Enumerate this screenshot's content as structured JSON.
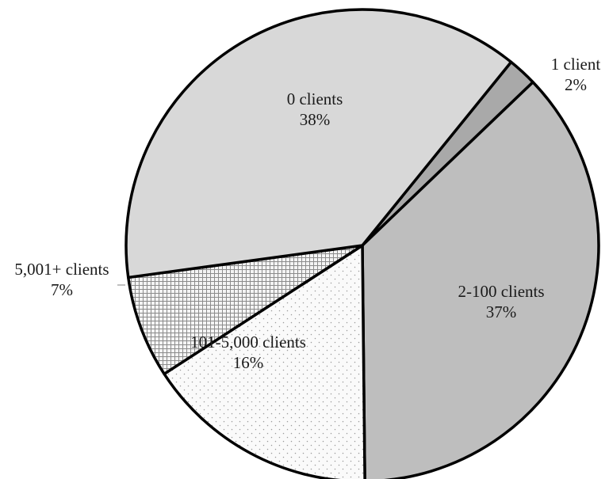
{
  "chart_data": {
    "type": "pie",
    "title": "",
    "start_angle_deg": 39,
    "direction": "clockwise",
    "slices": [
      {
        "name": "1 client",
        "label_line1": "1 client",
        "label_line2": "2%",
        "value": 2,
        "fill": "#a9a9a9",
        "pattern": "solid"
      },
      {
        "name": "2-100 clients",
        "label_line1": "2-100 clients",
        "label_line2": "37%",
        "value": 37,
        "fill": "#bebebe",
        "pattern": "solid"
      },
      {
        "name": "101-5,000 clients",
        "label_line1": "101-5,000 clients",
        "label_line2": "16%",
        "value": 16,
        "fill": "#fafafa",
        "pattern": "dots"
      },
      {
        "name": "5,001+ clients",
        "label_line1": "5,001+ clients",
        "label_line2": "7%",
        "value": 7,
        "fill": "#f4f4f4",
        "pattern": "grid"
      },
      {
        "name": "0 clients",
        "label_line1": "0 clients",
        "label_line2": "38%",
        "value": 38,
        "fill": "#d8d8d8",
        "pattern": "solid"
      }
    ],
    "outline_color": "#000000"
  }
}
